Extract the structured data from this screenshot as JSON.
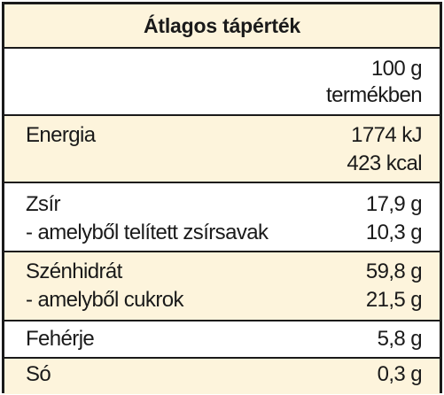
{
  "title": "Átlagos tápérték",
  "column_header": [
    "100 g",
    "termékben"
  ],
  "rows": [
    {
      "labels": [
        "Energia"
      ],
      "values": [
        "1774 kJ",
        "423 kcal"
      ]
    },
    {
      "labels": [
        "Zsír",
        "- amelyből telített zsírsavak"
      ],
      "values": [
        "17,9 g",
        "10,3 g"
      ]
    },
    {
      "labels": [
        "Szénhidrát",
        "- amelyből cukrok"
      ],
      "values": [
        "59,8 g",
        "21,5 g"
      ]
    },
    {
      "labels": [
        "Fehérje"
      ],
      "values": [
        "5,8 g"
      ]
    },
    {
      "labels": [
        "Só"
      ],
      "values": [
        "0,3 g"
      ]
    }
  ]
}
